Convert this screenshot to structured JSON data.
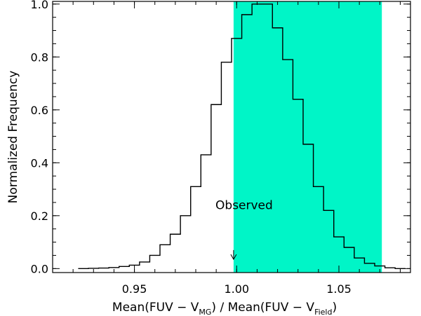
{
  "chart_data": {
    "type": "histogram",
    "xlabel_parts": [
      "Mean(FUV − V",
      "MG",
      ") / Mean(FUV − V",
      "Field",
      ")"
    ],
    "ylabel": "Normalized Frequency",
    "xlim": [
      0.91,
      1.085
    ],
    "ylim": [
      -0.015,
      1.01
    ],
    "x_ticks": [
      0.95,
      1.0,
      1.05
    ],
    "x_tick_labels": [
      "0.95",
      "1.00",
      "1.05"
    ],
    "y_ticks": [
      0.0,
      0.2,
      0.4,
      0.6,
      0.8,
      1.0
    ],
    "y_tick_labels": [
      "0.0",
      "0.2",
      "0.4",
      "0.6",
      "0.8",
      "1.0"
    ],
    "x_minor_step": 0.01,
    "y_minor_step": 0.05,
    "bin_width": 0.005,
    "bins": [
      {
        "x0": 0.9225,
        "y": 0.0
      },
      {
        "x0": 0.9275,
        "y": 0.001
      },
      {
        "x0": 0.9325,
        "y": 0.002
      },
      {
        "x0": 0.9375,
        "y": 0.004
      },
      {
        "x0": 0.9425,
        "y": 0.008
      },
      {
        "x0": 0.9475,
        "y": 0.013
      },
      {
        "x0": 0.9525,
        "y": 0.025
      },
      {
        "x0": 0.9575,
        "y": 0.05
      },
      {
        "x0": 0.9625,
        "y": 0.09
      },
      {
        "x0": 0.9675,
        "y": 0.13
      },
      {
        "x0": 0.9725,
        "y": 0.2
      },
      {
        "x0": 0.9775,
        "y": 0.31
      },
      {
        "x0": 0.9825,
        "y": 0.43
      },
      {
        "x0": 0.9875,
        "y": 0.62
      },
      {
        "x0": 0.9925,
        "y": 0.78
      },
      {
        "x0": 0.9975,
        "y": 0.87
      },
      {
        "x0": 1.0025,
        "y": 0.96
      },
      {
        "x0": 1.0075,
        "y": 1.0
      },
      {
        "x0": 1.0125,
        "y": 1.0
      },
      {
        "x0": 1.0175,
        "y": 0.91
      },
      {
        "x0": 1.0225,
        "y": 0.79
      },
      {
        "x0": 1.0275,
        "y": 0.64
      },
      {
        "x0": 1.0325,
        "y": 0.47
      },
      {
        "x0": 1.0375,
        "y": 0.31
      },
      {
        "x0": 1.0425,
        "y": 0.22
      },
      {
        "x0": 1.0475,
        "y": 0.12
      },
      {
        "x0": 1.0525,
        "y": 0.08
      },
      {
        "x0": 1.0575,
        "y": 0.04
      },
      {
        "x0": 1.0625,
        "y": 0.02
      },
      {
        "x0": 1.0675,
        "y": 0.01
      },
      {
        "x0": 1.0725,
        "y": 0.003
      },
      {
        "x0": 1.0775,
        "y": 0.0
      }
    ],
    "shaded_region": {
      "x_start": 0.9985,
      "x_end": 1.071,
      "color": "#00F5C7"
    },
    "observed": {
      "label": "Observed",
      "x": 0.9985,
      "label_y": 0.225,
      "arrow_from_y": 0.07,
      "arrow_to_y": 0.035
    },
    "grid": false
  }
}
